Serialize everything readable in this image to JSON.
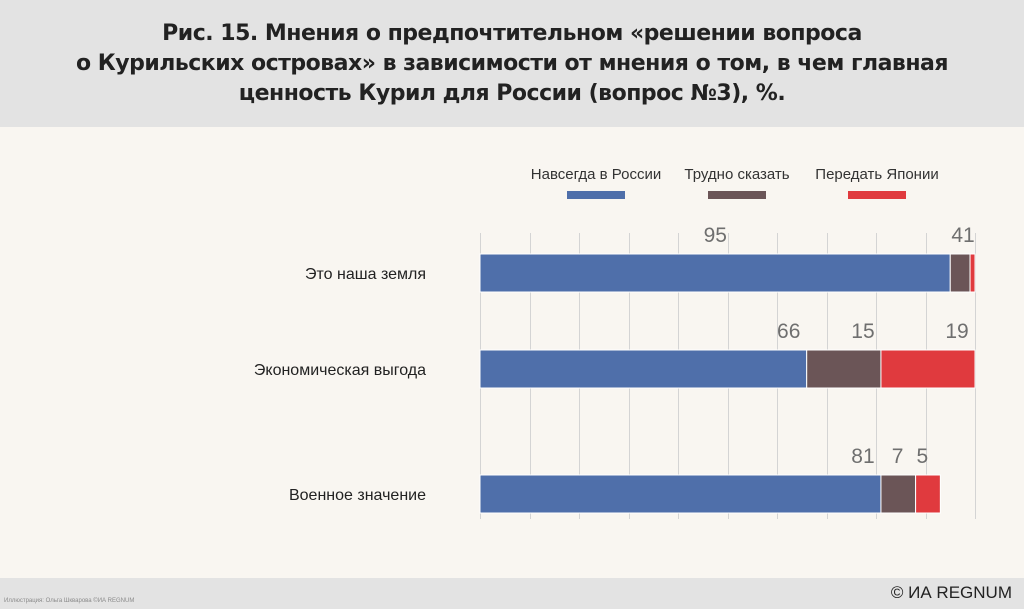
{
  "title_lines": [
    "Рис. 15. Мнения о предпочтительном «решении вопроса",
    "о Курильских островах» в зависимости от мнения о том, в чем главная",
    "ценность Курил для России (вопрос №3), %."
  ],
  "footer": {
    "copyright": "© ИА REGNUM",
    "credit": "Иллюстрация: Ольга Шкварова ©ИА REGNUM"
  },
  "colors": {
    "header_bg": "#e3e3e3",
    "chart_bg": "#f9f6f1",
    "series": [
      "#4f6faa",
      "#6b5557",
      "#e03a3e"
    ]
  },
  "chart_data": {
    "type": "bar",
    "orientation": "horizontal",
    "stacked": true,
    "categories": [
      "Это наша земля",
      "Экономическая выгода",
      "Военное значение"
    ],
    "series": [
      {
        "name": "Навсегда в России",
        "values": [
          95,
          66,
          81
        ],
        "labels": [
          "95",
          "66",
          "81"
        ]
      },
      {
        "name": "Трудно сказать",
        "values": [
          4,
          15,
          7
        ],
        "labels": [
          "4",
          "15",
          "7"
        ]
      },
      {
        "name": "Передать Японии",
        "values": [
          1,
          19,
          5
        ],
        "labels": [
          "1",
          "19",
          "5"
        ]
      }
    ],
    "xlim": [
      0,
      100
    ],
    "legend_position": "top",
    "grid": true
  }
}
